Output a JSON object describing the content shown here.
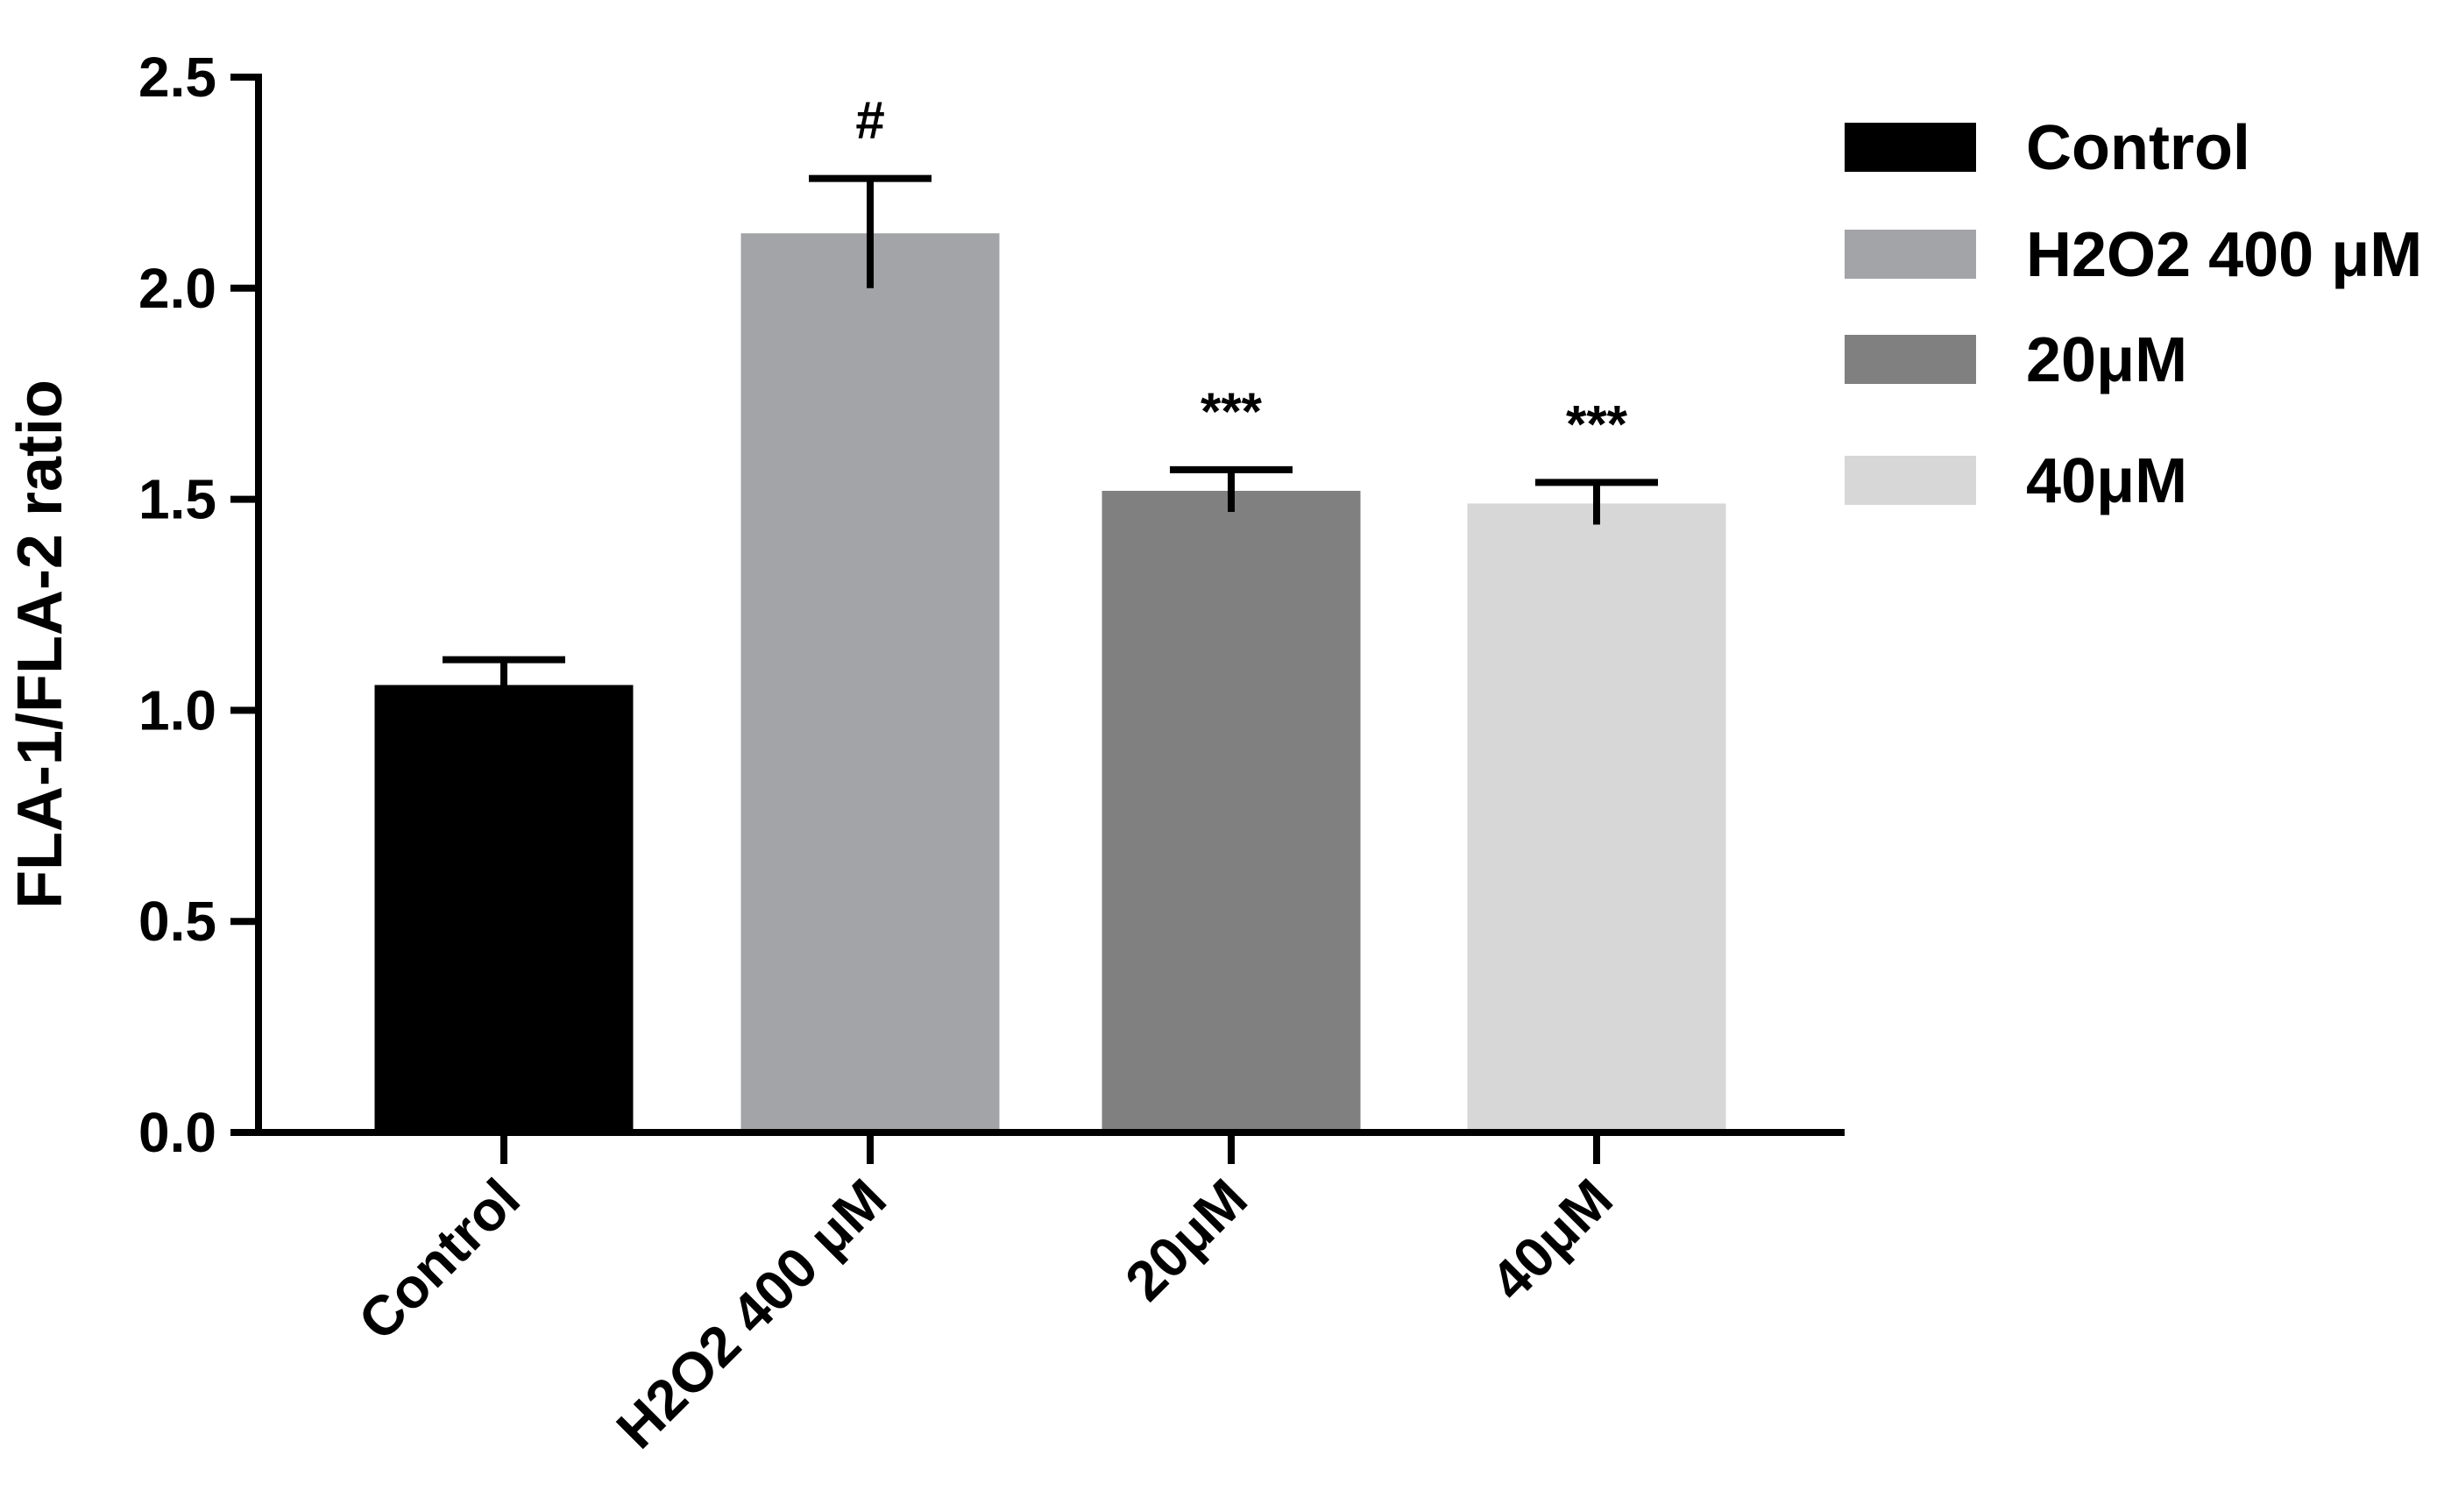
{
  "chart_data": {
    "type": "bar",
    "categories": [
      "Control",
      "H2O2 400 μM",
      "20μM",
      "40μM"
    ],
    "values": [
      1.06,
      2.13,
      1.52,
      1.49
    ],
    "errors": [
      0.06,
      0.13,
      0.05,
      0.05
    ],
    "colors": [
      "#000000",
      "#a3a4a8",
      "#808080",
      "#d7d7d7"
    ],
    "annotations": [
      "",
      "#",
      "***",
      "***"
    ],
    "ylabel": "FLA-1/FLA-2 ratio",
    "ylim": [
      0,
      2.5
    ],
    "yticks": [
      "0.0",
      "0.5",
      "1.0",
      "1.5",
      "2.0",
      "2.5"
    ],
    "grid": false,
    "legend": {
      "position": "top-right",
      "entries": [
        "Control",
        "H2O2 400 μM",
        "20μM",
        "40μM"
      ]
    }
  }
}
